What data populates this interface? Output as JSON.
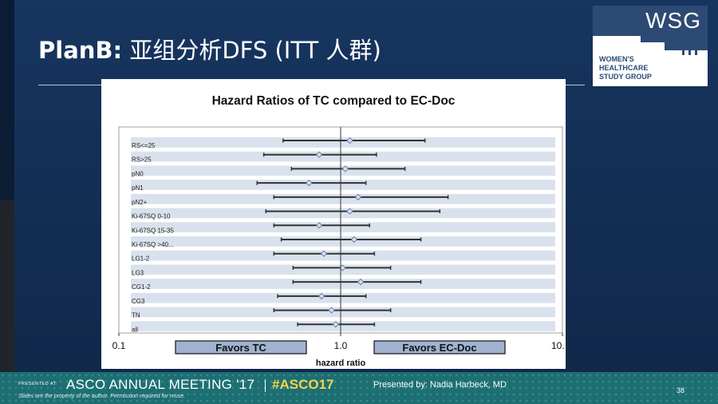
{
  "slide": {
    "title_bold": "PlanB:",
    "title_rest": " 亚组分析DFS (ITT 人群)",
    "page_number": "38"
  },
  "logo": {
    "acronym": "WSG",
    "line1": "WOMEN'S",
    "line2": "HEALTHCARE",
    "line3": "STUDY GROUP"
  },
  "footer": {
    "presented_at": "PRESENTED AT:",
    "meeting": "ASCO ANNUAL MEETING '17",
    "hashtag": "#ASCO17",
    "disclaimer": "Slides are the property of the author. Permission required for reuse.",
    "presenter": "Presented by: Nadia Harbeck, MD"
  },
  "chart_data": {
    "type": "forest",
    "title": "Hazard Ratios of TC compared to EC-Doc",
    "xlabel": "hazard ratio",
    "x_scale": "log",
    "xlim": [
      0.1,
      10
    ],
    "x_ticks": [
      "0.1",
      "1.0",
      "10."
    ],
    "reference_line": 1.0,
    "favors_left": "Favors TC",
    "favors_right": "Favors EC-Doc",
    "rows": [
      {
        "label": "RS<=25",
        "hr": 1.1,
        "lo": 0.55,
        "hi": 2.4
      },
      {
        "label": "RS>25",
        "hr": 0.8,
        "lo": 0.45,
        "hi": 1.45
      },
      {
        "label": "pN0",
        "hr": 1.05,
        "lo": 0.6,
        "hi": 1.95
      },
      {
        "label": "pN1",
        "hr": 0.72,
        "lo": 0.42,
        "hi": 1.3
      },
      {
        "label": "pN2+",
        "hr": 1.2,
        "lo": 0.5,
        "hi": 3.05
      },
      {
        "label": "Ki-67SQ 0-10",
        "hr": 1.1,
        "lo": 0.46,
        "hi": 2.8
      },
      {
        "label": "Ki-67SQ 15-35",
        "hr": 0.8,
        "lo": 0.5,
        "hi": 1.35
      },
      {
        "label": "Ki-67SQ >40...",
        "hr": 1.15,
        "lo": 0.54,
        "hi": 2.3
      },
      {
        "label": "LG1-2",
        "hr": 0.84,
        "lo": 0.5,
        "hi": 1.42
      },
      {
        "label": "LG3",
        "hr": 1.02,
        "lo": 0.61,
        "hi": 1.68
      },
      {
        "label": "CG1-2",
        "hr": 1.23,
        "lo": 0.61,
        "hi": 2.3
      },
      {
        "label": "CG3",
        "hr": 0.82,
        "lo": 0.52,
        "hi": 1.3
      },
      {
        "label": "TN",
        "hr": 0.91,
        "lo": 0.5,
        "hi": 1.68
      },
      {
        "label": "all",
        "hr": 0.95,
        "lo": 0.64,
        "hi": 1.42
      }
    ]
  }
}
